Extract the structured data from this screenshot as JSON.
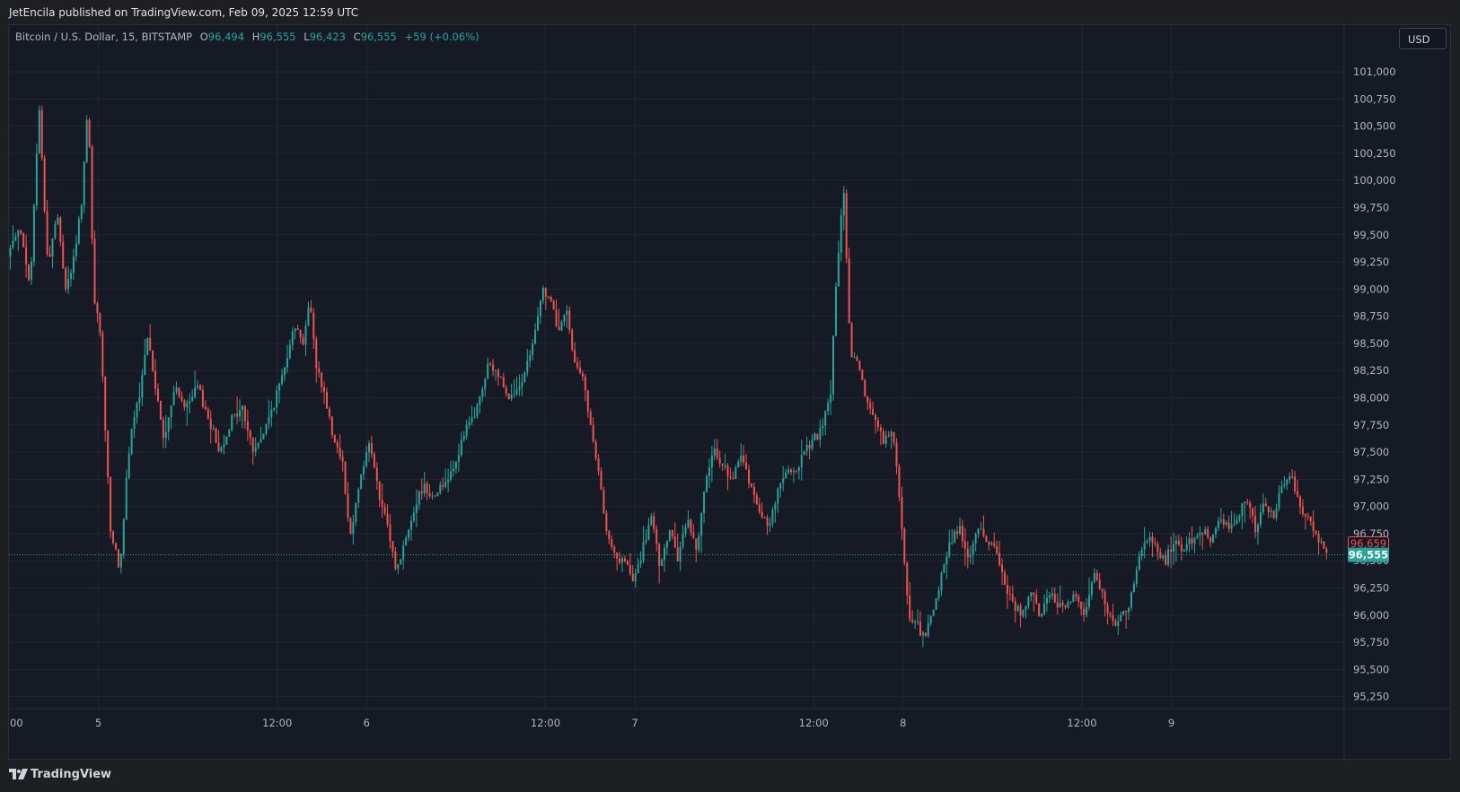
{
  "header": {
    "publish_text": "JetEncila published on TradingView.com, Feb 09, 2025 12:59 UTC"
  },
  "legend": {
    "symbol": "Bitcoin / U.S. Dollar, 15, BITSTAMP",
    "open_label": "O",
    "open_value": "96,494",
    "high_label": "H",
    "high_value": "96,555",
    "low_label": "L",
    "low_value": "96,423",
    "close_label": "C",
    "close_value": "96,555",
    "change": "+59 (+0.06%)"
  },
  "currency_button": "USD",
  "footer": {
    "brand": "TradingView"
  },
  "colors": {
    "up": "#26a69a",
    "down": "#ef5350",
    "background": "#161a25",
    "grid": "#232733",
    "axis_text": "#b2b5be"
  },
  "chart_data": {
    "type": "candlestick",
    "symbol": "Bitcoin / U.S. Dollar",
    "interval": "15",
    "exchange": "BITSTAMP",
    "currency": "USD",
    "y_tick_labels": [
      "95,250",
      "95,500",
      "95,750",
      "96,000",
      "96,250",
      "96,500",
      "96,750",
      "97,000",
      "97,250",
      "97,500",
      "97,750",
      "98,000",
      "98,250",
      "98,500",
      "98,750",
      "99,000",
      "99,250",
      "99,500",
      "99,750",
      "100,000",
      "100,250",
      "100,500",
      "100,750",
      "101,000"
    ],
    "y_ticks": [
      95250,
      95500,
      95750,
      96000,
      96250,
      96500,
      96750,
      97000,
      97250,
      97500,
      97750,
      98000,
      98250,
      98500,
      98750,
      99000,
      99250,
      99500,
      99750,
      100000,
      100250,
      100500,
      100750,
      101000
    ],
    "ylim": [
      95140,
      101430
    ],
    "x_tick_labels": [
      "00",
      "5",
      "12:00",
      "6",
      "12:00",
      "7",
      "12:00",
      "8",
      "12:00",
      "9"
    ],
    "x_ticks": [
      0,
      4,
      12,
      16,
      24,
      28,
      36,
      40,
      48,
      52
    ],
    "xlim": [
      0,
      59.73
    ],
    "price_labels": [
      {
        "text": "96,659",
        "value": 96659,
        "style": "outline",
        "color": "#ef5350"
      },
      {
        "text": "96,555",
        "value": 96555,
        "style": "filled",
        "color": "#26a69a"
      }
    ],
    "current_price_line": 96555,
    "grid": true,
    "price_path": [
      [
        0,
        99300
      ],
      [
        0.5,
        99600
      ],
      [
        1,
        99000
      ],
      [
        1.4,
        100700
      ],
      [
        1.8,
        99200
      ],
      [
        2.2,
        99700
      ],
      [
        2.6,
        99000
      ],
      [
        3.0,
        99300
      ],
      [
        3.3,
        99800
      ],
      [
        3.6,
        100700
      ],
      [
        3.85,
        98900
      ],
      [
        4.1,
        98700
      ],
      [
        4.35,
        97800
      ],
      [
        4.6,
        96800
      ],
      [
        5.0,
        96400
      ],
      [
        5.3,
        97200
      ],
      [
        5.6,
        97800
      ],
      [
        5.9,
        98000
      ],
      [
        6.3,
        98600
      ],
      [
        6.6,
        98100
      ],
      [
        7.0,
        97600
      ],
      [
        7.5,
        98100
      ],
      [
        8.0,
        97900
      ],
      [
        8.5,
        98100
      ],
      [
        9.0,
        97800
      ],
      [
        9.5,
        97500
      ],
      [
        10.0,
        97800
      ],
      [
        10.5,
        97900
      ],
      [
        11.0,
        97500
      ],
      [
        11.5,
        97700
      ],
      [
        12.0,
        98000
      ],
      [
        12.4,
        98300
      ],
      [
        12.8,
        98700
      ],
      [
        13.2,
        98500
      ],
      [
        13.5,
        98900
      ],
      [
        13.8,
        98300
      ],
      [
        14.1,
        98100
      ],
      [
        14.5,
        97700
      ],
      [
        15.0,
        97400
      ],
      [
        15.3,
        96700
      ],
      [
        15.8,
        97300
      ],
      [
        16.2,
        97600
      ],
      [
        16.6,
        97100
      ],
      [
        17.0,
        96800
      ],
      [
        17.4,
        96400
      ],
      [
        17.8,
        96700
      ],
      [
        18.2,
        97000
      ],
      [
        18.6,
        97200
      ],
      [
        19.0,
        97100
      ],
      [
        19.5,
        97200
      ],
      [
        20.0,
        97400
      ],
      [
        20.5,
        97700
      ],
      [
        21.0,
        97900
      ],
      [
        21.5,
        98300
      ],
      [
        22.0,
        98200
      ],
      [
        22.5,
        98000
      ],
      [
        23.0,
        98100
      ],
      [
        23.5,
        98500
      ],
      [
        23.9,
        99000
      ],
      [
        24.3,
        98900
      ],
      [
        24.6,
        98600
      ],
      [
        25.0,
        98800
      ],
      [
        25.3,
        98400
      ],
      [
        25.7,
        98200
      ],
      [
        26.1,
        97700
      ],
      [
        26.5,
        97200
      ],
      [
        26.8,
        96800
      ],
      [
        27.2,
        96500
      ],
      [
        27.6,
        96500
      ],
      [
        28.0,
        96300
      ],
      [
        28.4,
        96600
      ],
      [
        28.8,
        96900
      ],
      [
        29.2,
        96400
      ],
      [
        29.6,
        96800
      ],
      [
        30.0,
        96500
      ],
      [
        30.4,
        96900
      ],
      [
        30.8,
        96600
      ],
      [
        31.2,
        97200
      ],
      [
        31.6,
        97500
      ],
      [
        32.0,
        97400
      ],
      [
        32.4,
        97200
      ],
      [
        32.8,
        97500
      ],
      [
        33.2,
        97200
      ],
      [
        33.6,
        97000
      ],
      [
        34.0,
        96800
      ],
      [
        34.4,
        97100
      ],
      [
        34.8,
        97300
      ],
      [
        35.2,
        97300
      ],
      [
        35.6,
        97500
      ],
      [
        36.0,
        97600
      ],
      [
        36.4,
        97700
      ],
      [
        36.8,
        98000
      ],
      [
        37.1,
        99200
      ],
      [
        37.4,
        99900
      ],
      [
        37.7,
        98400
      ],
      [
        38.0,
        98300
      ],
      [
        38.4,
        98000
      ],
      [
        38.8,
        97800
      ],
      [
        39.2,
        97600
      ],
      [
        39.6,
        97700
      ],
      [
        40.0,
        96800
      ],
      [
        40.3,
        96000
      ],
      [
        40.7,
        95900
      ],
      [
        41.0,
        95800
      ],
      [
        41.4,
        96000
      ],
      [
        41.8,
        96400
      ],
      [
        42.2,
        96700
      ],
      [
        42.6,
        96800
      ],
      [
        43.0,
        96500
      ],
      [
        43.4,
        96800
      ],
      [
        43.8,
        96700
      ],
      [
        44.2,
        96600
      ],
      [
        44.6,
        96300
      ],
      [
        45.0,
        96100
      ],
      [
        45.4,
        96000
      ],
      [
        45.8,
        96200
      ],
      [
        46.2,
        96000
      ],
      [
        46.6,
        96200
      ],
      [
        47.0,
        96100
      ],
      [
        47.4,
        96100
      ],
      [
        47.8,
        96200
      ],
      [
        48.2,
        96000
      ],
      [
        48.6,
        96400
      ],
      [
        49.0,
        96200
      ],
      [
        49.4,
        95900
      ],
      [
        49.8,
        96000
      ],
      [
        50.2,
        96100
      ],
      [
        50.6,
        96500
      ],
      [
        51.0,
        96700
      ],
      [
        51.4,
        96600
      ],
      [
        51.8,
        96500
      ],
      [
        52.2,
        96700
      ],
      [
        52.6,
        96600
      ],
      [
        53.0,
        96700
      ],
      [
        53.4,
        96800
      ],
      [
        53.8,
        96700
      ],
      [
        54.2,
        96900
      ],
      [
        54.6,
        96800
      ],
      [
        55.0,
        96900
      ],
      [
        55.4,
        97100
      ],
      [
        55.8,
        96800
      ],
      [
        56.2,
        97000
      ],
      [
        56.6,
        96900
      ],
      [
        57.0,
        97200
      ],
      [
        57.4,
        97300
      ],
      [
        57.8,
        97000
      ],
      [
        58.2,
        96900
      ],
      [
        58.6,
        96700
      ],
      [
        59.0,
        96600
      ]
    ]
  }
}
